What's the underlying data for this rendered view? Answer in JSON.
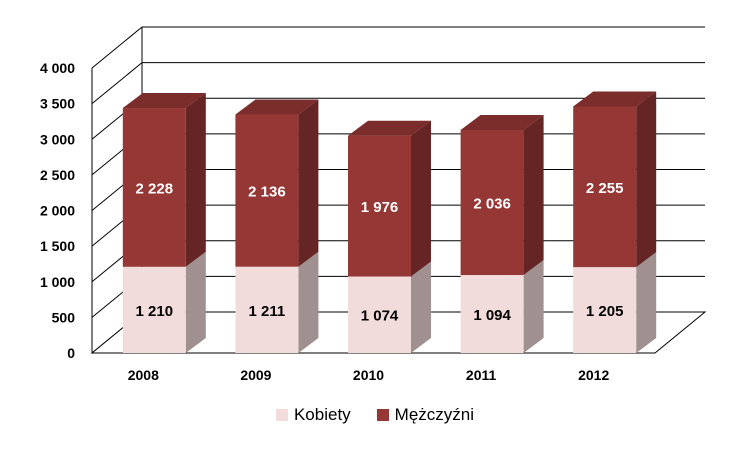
{
  "chart_data": {
    "type": "bar",
    "stacked": true,
    "style": "3d",
    "categories": [
      "2008",
      "2009",
      "2010",
      "2011",
      "2012"
    ],
    "series": [
      {
        "name": "Kobiety",
        "values": [
          1210,
          1211,
          1074,
          1094,
          1205
        ],
        "color": "#f2dcdb"
      },
      {
        "name": "Mężczyźni",
        "values": [
          2228,
          2136,
          1976,
          2036,
          2255
        ],
        "color": "#953735"
      }
    ],
    "value_labels": {
      "Kobiety": [
        "1 210",
        "1 211",
        "1 074",
        "1 094",
        "1 205"
      ],
      "Mężczyźni": [
        "2 228",
        "2 136",
        "1 976",
        "2 036",
        "2 255"
      ]
    },
    "y_ticks": [
      "0",
      "500",
      "1 000",
      "1 500",
      "2 000",
      "2 500",
      "3 000",
      "3 500",
      "4 000"
    ],
    "ylim": [
      0,
      4000
    ],
    "grid": true,
    "legend_position": "bottom",
    "title": "",
    "xlabel": "",
    "ylabel": ""
  }
}
